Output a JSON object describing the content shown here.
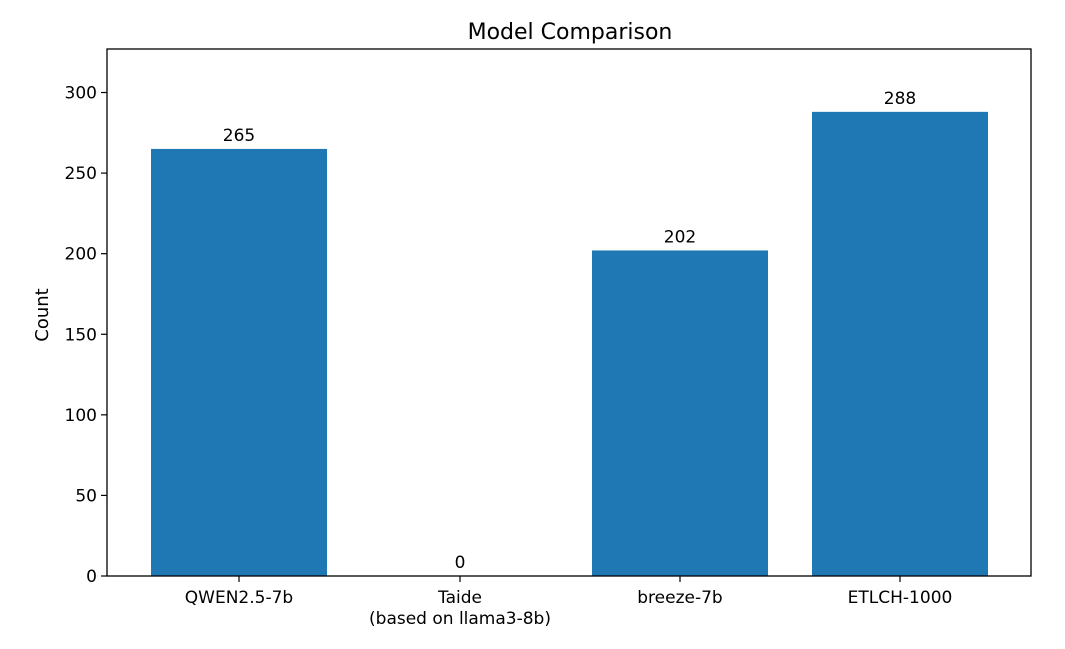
{
  "chart_data": {
    "type": "bar",
    "title": "Model Comparison",
    "xlabel": "",
    "ylabel": "Count",
    "categories": [
      [
        "QWEN2.5-7b"
      ],
      [
        "Taide",
        "(based on llama3-8b)"
      ],
      [
        "breeze-7b"
      ],
      [
        "ETLCH-1000"
      ]
    ],
    "values": [
      265,
      0,
      202,
      288
    ],
    "data_labels": [
      "265",
      "0",
      "202",
      "288"
    ],
    "ylim": [
      0,
      327
    ],
    "yticks": [
      0,
      50,
      100,
      150,
      200,
      250,
      300
    ],
    "grid": false,
    "legend": "none",
    "bar_color": "#1f77b4"
  }
}
